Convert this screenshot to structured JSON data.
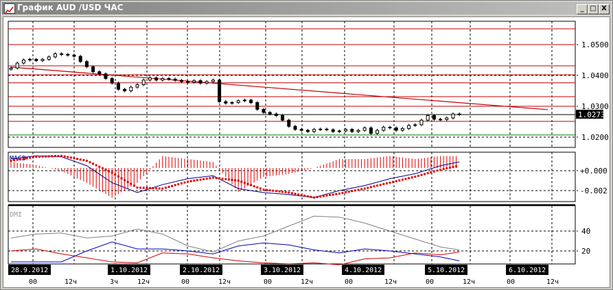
{
  "window": {
    "title": "График AUD /USD  ЧАС",
    "minimize": "_",
    "maximize": "□",
    "close": "X"
  },
  "chart_data": [
    {
      "type": "candlestick",
      "title": "График AUD /USD  ЧАС",
      "y_ticks": [
        "1.0500",
        "1.0400",
        "1.0300",
        "1.0200"
      ],
      "y_tick_values": [
        1.05,
        1.04,
        1.03,
        1.02
      ],
      "ylim": [
        1.0169,
        1.0572
      ],
      "current_price": "1.0273",
      "current_price_value": 1.0273,
      "interval_hours": 2,
      "closes": [
        1.0424,
        1.044,
        1.045,
        1.0452,
        1.0448,
        1.0452,
        1.046,
        1.047,
        1.0468,
        1.0466,
        1.0462,
        1.0445,
        1.0428,
        1.0412,
        1.0405,
        1.039,
        1.0375,
        1.0355,
        1.035,
        1.0362,
        1.037,
        1.0385,
        1.0392,
        1.0385,
        1.039,
        1.0388,
        1.0384,
        1.038,
        1.0378,
        1.0383,
        1.0375,
        1.038,
        1.0385,
        1.0315,
        1.031,
        1.0312,
        1.0318,
        1.032,
        1.0312,
        1.029,
        1.028,
        1.0275,
        1.027,
        1.0255,
        1.0235,
        1.0225,
        1.0222,
        1.0218,
        1.0225,
        1.0226,
        1.0224,
        1.0218,
        1.022,
        1.0225,
        1.0218,
        1.0222,
        1.023,
        1.0212,
        1.0222,
        1.0232,
        1.023,
        1.0222,
        1.0228,
        1.0238,
        1.024,
        1.0255,
        1.027,
        1.0258,
        1.0257,
        1.0262,
        1.0275,
        1.0273
      ],
      "level_lines": [
        {
          "price": 1.0551,
          "color": "#c00000"
        },
        {
          "price": 1.05,
          "color": "#c00000"
        },
        {
          "price": 1.0431,
          "color": "#c00000"
        },
        {
          "price": 1.0402,
          "color": "#c00000"
        },
        {
          "price": 1.0376,
          "color": "#c00000"
        },
        {
          "price": 1.0331,
          "color": "#c00000"
        },
        {
          "price": 1.03,
          "color": "#c00000"
        },
        {
          "price": 1.0273,
          "color": "#000000"
        },
        {
          "price": 1.0251,
          "color": "#c00000"
        },
        {
          "price": 1.0207,
          "color": "#008000"
        }
      ],
      "trend_line": {
        "from": [
          0,
          1.0427
        ],
        "to": [
          85,
          1.0289
        ],
        "color": "#c00000"
      }
    },
    {
      "type": "line",
      "title": "MACD",
      "y_ticks": [
        "+0.000",
        "-0.002"
      ],
      "y_tick_values": [
        0,
        -0.002
      ],
      "point_indices": [
        0,
        4,
        8,
        12,
        16,
        20,
        24,
        28,
        32,
        36,
        40,
        44,
        48,
        52,
        56,
        60,
        64,
        68,
        71
      ],
      "series": [
        {
          "values": [
            0.0012,
            0.0015,
            0.0014,
            0.0005,
            -0.0012,
            -0.0022,
            -0.0014,
            -0.0008,
            -0.0005,
            -0.0018,
            -0.0022,
            -0.0024,
            -0.0027,
            -0.002,
            -0.0015,
            -0.0008,
            -0.0003,
            0.0005,
            0.0009
          ],
          "color": "#000080"
        },
        {
          "values": [
            0.001,
            0.0014,
            0.0015,
            0.001,
            -0.0002,
            -0.0017,
            -0.0018,
            -0.0011,
            -0.0007,
            -0.001,
            -0.0019,
            -0.0022,
            -0.0027,
            -0.0023,
            -0.0018,
            -0.0012,
            -0.0006,
            0.0001,
            0.0005
          ],
          "color": "#e00000"
        }
      ]
    },
    {
      "type": "line",
      "title": "DMI",
      "y_ticks": [
        "40",
        "20"
      ],
      "y_tick_values": [
        40,
        20
      ],
      "point_indices": [
        0,
        4,
        8,
        12,
        16,
        20,
        24,
        28,
        32,
        36,
        40,
        44,
        48,
        52,
        56,
        60,
        64,
        68,
        71
      ],
      "series": [
        {
          "values": [
            33,
            37,
            38,
            33,
            35,
            42,
            37,
            25,
            19,
            30,
            35,
            45,
            55,
            54,
            48,
            40,
            32,
            24,
            21
          ],
          "color": "#808080"
        },
        {
          "values": [
            9,
            9,
            9,
            20,
            29,
            22,
            22,
            20,
            17,
            25,
            28,
            26,
            21,
            18,
            22,
            20,
            17,
            14,
            10
          ],
          "color": "#0000c0"
        },
        {
          "values": [
            20,
            22,
            17,
            13,
            9,
            8,
            18,
            17,
            13,
            10,
            8,
            7,
            8,
            6,
            12,
            13,
            18,
            16,
            19
          ],
          "color": "#d00000"
        }
      ]
    }
  ],
  "time_axis": {
    "dates": [
      "28.9.2012",
      "1.10.2012",
      "2.10.2012",
      "3.10.2012",
      "4.10.2012",
      "5.10.2012",
      "6.10.2012"
    ],
    "hours": [
      "00",
      "12ч",
      "3ч",
      "12ч",
      "00",
      "12ч",
      "00",
      "12ч",
      "00",
      "12ч",
      "00",
      "12ч",
      "00",
      "12ч"
    ]
  }
}
